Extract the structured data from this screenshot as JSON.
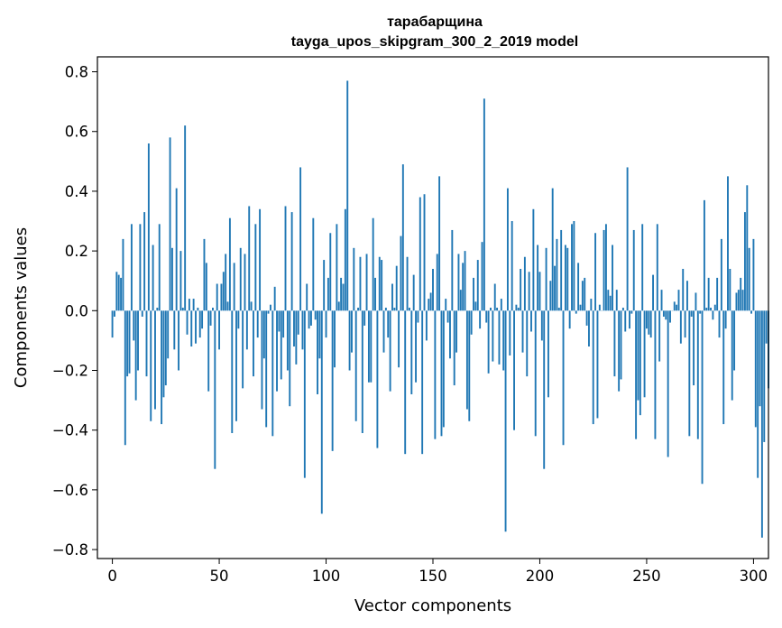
{
  "chart_data": {
    "type": "bar",
    "title": "тарабарщина",
    "subtitle": "tayga_upos_skipgram_300_2_2019 model",
    "xlabel": "Vector components",
    "ylabel": "Components values",
    "xlim": [
      -7,
      307
    ],
    "ylim": [
      -0.83,
      0.85
    ],
    "xticks": [
      0,
      50,
      100,
      150,
      200,
      250,
      300
    ],
    "yticks": [
      -0.8,
      -0.6,
      -0.4,
      -0.2,
      0.0,
      0.2,
      0.4,
      0.6,
      0.8
    ],
    "xtick_labels": [
      "0",
      "50",
      "100",
      "150",
      "200",
      "250",
      "300"
    ],
    "ytick_labels": [
      "−0.8",
      "−0.6",
      "−0.4",
      "−0.2",
      "0.0",
      "0.2",
      "0.4",
      "0.6",
      "0.8"
    ],
    "bar_color": "#1f77b4",
    "grid": false,
    "values": [
      -0.09,
      -0.02,
      0.13,
      0.12,
      0.11,
      0.24,
      -0.45,
      -0.22,
      -0.21,
      0.29,
      -0.1,
      -0.3,
      -0.2,
      0.29,
      -0.02,
      0.33,
      -0.22,
      0.56,
      -0.37,
      0.22,
      -0.33,
      0.01,
      0.29,
      -0.38,
      -0.29,
      -0.25,
      -0.16,
      0.58,
      0.21,
      -0.13,
      0.41,
      -0.2,
      0.2,
      0.01,
      0.62,
      -0.08,
      0.04,
      -0.12,
      0.04,
      -0.11,
      0.01,
      -0.09,
      -0.06,
      0.24,
      0.16,
      -0.27,
      -0.05,
      0.01,
      -0.53,
      0.09,
      -0.13,
      0.09,
      0.13,
      0.19,
      0.03,
      0.31,
      -0.41,
      0.16,
      -0.37,
      -0.06,
      0.21,
      -0.26,
      0.19,
      -0.13,
      0.35,
      0.03,
      -0.22,
      0.29,
      -0.09,
      0.34,
      -0.33,
      -0.16,
      -0.39,
      -0.01,
      0.02,
      -0.42,
      0.08,
      -0.27,
      -0.07,
      -0.23,
      -0.09,
      0.35,
      -0.2,
      -0.32,
      0.33,
      -0.12,
      -0.18,
      -0.08,
      0.48,
      -0.13,
      -0.56,
      0.09,
      -0.06,
      -0.05,
      0.31,
      -0.03,
      -0.28,
      -0.16,
      -0.68,
      0.17,
      -0.09,
      0.11,
      0.26,
      -0.47,
      -0.19,
      0.29,
      0.03,
      0.11,
      0.09,
      0.34,
      0.77,
      -0.2,
      -0.14,
      0.21,
      -0.37,
      0.01,
      0.18,
      -0.41,
      -0.05,
      0.19,
      -0.24,
      -0.24,
      0.31,
      0.11,
      -0.46,
      0.18,
      0.17,
      -0.14,
      0.01,
      -0.09,
      -0.27,
      0.09,
      0.01,
      0.15,
      -0.19,
      0.25,
      0.49,
      -0.48,
      0.18,
      0.01,
      -0.28,
      0.12,
      -0.24,
      -0.04,
      0.38,
      -0.48,
      0.39,
      -0.1,
      0.04,
      0.06,
      0.14,
      -0.43,
      0.19,
      0.45,
      -0.42,
      -0.39,
      0.04,
      -0.04,
      -0.16,
      0.27,
      -0.25,
      -0.14,
      0.19,
      0.07,
      0.16,
      0.2,
      -0.33,
      -0.37,
      -0.08,
      0.11,
      0.03,
      0.17,
      -0.06,
      0.23,
      0.71,
      -0.04,
      -0.21,
      0.01,
      -0.17,
      0.09,
      0.01,
      -0.18,
      0.04,
      -0.2,
      -0.74,
      0.41,
      -0.15,
      0.3,
      -0.4,
      0.02,
      0.01,
      0.14,
      -0.14,
      0.18,
      -0.22,
      0.13,
      -0.07,
      0.34,
      -0.42,
      0.22,
      0.13,
      -0.1,
      -0.53,
      0.21,
      -0.29,
      0.1,
      0.41,
      0.15,
      0.24,
      0.01,
      0.27,
      -0.45,
      0.22,
      0.21,
      -0.06,
      0.29,
      0.3,
      -0.01,
      0.16,
      0.02,
      0.1,
      0.11,
      -0.05,
      -0.12,
      0.04,
      -0.38,
      0.26,
      -0.36,
      0.02,
      0.0,
      0.27,
      0.29,
      0.07,
      0.05,
      0.22,
      -0.22,
      0.07,
      -0.27,
      -0.23,
      0.01,
      -0.07,
      0.48,
      -0.06,
      -0.01,
      0.27,
      -0.43,
      -0.3,
      -0.35,
      0.29,
      -0.29,
      -0.06,
      -0.08,
      -0.09,
      0.12,
      -0.43,
      0.29,
      -0.17,
      0.07,
      -0.02,
      -0.03,
      -0.49,
      -0.04,
      0.0,
      0.03,
      0.02,
      0.07,
      -0.11,
      0.14,
      -0.09,
      0.1,
      -0.42,
      -0.02,
      -0.25,
      0.06,
      -0.43,
      -0.01,
      -0.58,
      0.37,
      0.01,
      0.11,
      0.01,
      -0.03,
      0.02,
      0.11,
      -0.09,
      0.24,
      -0.38,
      -0.06,
      0.45,
      0.14,
      -0.3,
      -0.2,
      0.06,
      0.07,
      0.11,
      0.07,
      0.33,
      0.42,
      0.21,
      -0.01,
      0.24,
      -0.39,
      -0.56,
      -0.32,
      -0.76,
      -0.44,
      -0.11,
      -0.26
    ]
  }
}
